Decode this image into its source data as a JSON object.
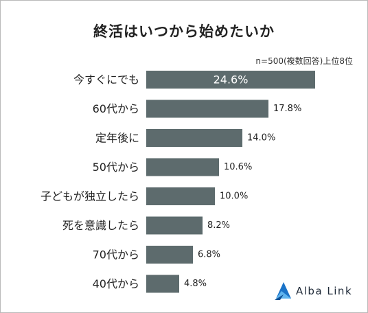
{
  "title": "終活はいつから始めたいか",
  "note": "n=500(複数回答)上位8位",
  "brand": {
    "name": "Alba Link",
    "icon": "alba-link-logo-icon",
    "color": "#1a73c8"
  },
  "colors": {
    "bar": "#5d6b6d",
    "inner_label": "#ffffff",
    "outer_label": "#222222"
  },
  "chart_data": {
    "type": "bar",
    "orientation": "horizontal",
    "categories": [
      "今すぐにでも",
      "60代から",
      "定年後に",
      "50代から",
      "子どもが独立したら",
      "死を意識したら",
      "70代から",
      "40代から"
    ],
    "values": [
      24.6,
      17.8,
      14.0,
      10.6,
      10.0,
      8.2,
      6.8,
      4.8
    ],
    "value_labels": [
      "24.6%",
      "17.8%",
      "14.0%",
      "10.6%",
      "10.0%",
      "8.2%",
      "6.8%",
      "4.8%"
    ],
    "title": "終活はいつから始めたいか",
    "unit": "%",
    "xlim": [
      0,
      24.6
    ],
    "grid": false,
    "legend": "none"
  }
}
